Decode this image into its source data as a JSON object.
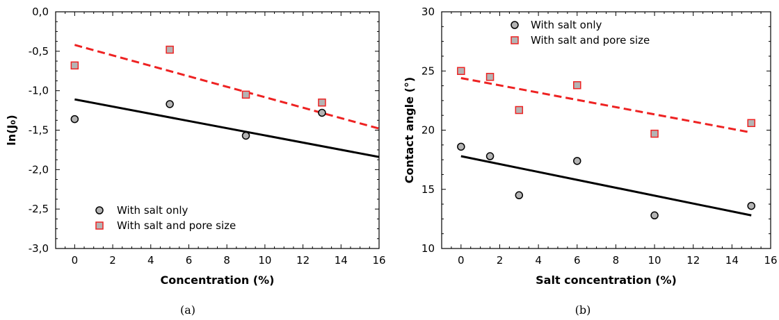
{
  "chart_data": [
    {
      "panel": "(a)",
      "type": "scatter",
      "title": "",
      "xlabel": "Concentration (%)",
      "ylabel": "ln(J₀)",
      "xlim": [
        -1,
        16
      ],
      "ylim": [
        -3.0,
        0.0
      ],
      "xticks": [
        0,
        2,
        4,
        6,
        8,
        10,
        12,
        14,
        16
      ],
      "xtick_labels": [
        "0",
        "2",
        "4",
        "6",
        "8",
        "10",
        "12",
        "14",
        "16"
      ],
      "yticks": [
        0.0,
        -0.5,
        -1.0,
        -1.5,
        -2.0,
        -2.5,
        -3.0
      ],
      "ytick_labels": [
        "0,0",
        "-0,5",
        "-1,0",
        "-1,5",
        "-2,0",
        "-2,5",
        "-3,0"
      ],
      "grid": false,
      "legend_position": "bottom-left",
      "series": [
        {
          "name": "With salt only",
          "marker": "circle",
          "color": "#000000",
          "fill": "#b4b4b4",
          "points": [
            [
              0,
              -1.36
            ],
            [
              5,
              -1.17
            ],
            [
              9,
              -1.57
            ],
            [
              13,
              -1.28
            ]
          ],
          "fit": {
            "style": "solid",
            "color": "#000000",
            "x": [
              0,
              16
            ],
            "y": [
              -1.11,
              -1.84
            ]
          }
        },
        {
          "name": "With salt and pore size",
          "marker": "square",
          "color": "#ee2222",
          "fill": "#b4b4b4",
          "points": [
            [
              0,
              -0.68
            ],
            [
              5,
              -0.48
            ],
            [
              9,
              -1.05
            ],
            [
              13,
              -1.15
            ]
          ],
          "fit": {
            "style": "dashed",
            "color": "#ee2222",
            "x": [
              0,
              16
            ],
            "y": [
              -0.42,
              -1.48
            ]
          }
        }
      ]
    },
    {
      "panel": "(b)",
      "type": "scatter",
      "title": "",
      "xlabel": "Salt concentration (%)",
      "ylabel": "Contact angle (°)",
      "xlim": [
        -1,
        16
      ],
      "ylim": [
        10,
        30
      ],
      "xticks": [
        0,
        2,
        4,
        6,
        8,
        10,
        12,
        14,
        16
      ],
      "xtick_labels": [
        "0",
        "2",
        "4",
        "6",
        "8",
        "10",
        "12",
        "14",
        "16"
      ],
      "yticks": [
        10,
        15,
        20,
        25,
        30
      ],
      "ytick_labels": [
        "10",
        "15",
        "20",
        "25",
        "30"
      ],
      "grid": false,
      "legend_position": "top-center",
      "series": [
        {
          "name": "With salt only",
          "marker": "circle",
          "color": "#000000",
          "fill": "#b4b4b4",
          "points": [
            [
              0,
              18.6
            ],
            [
              1.5,
              17.8
            ],
            [
              3,
              14.5
            ],
            [
              6,
              17.4
            ],
            [
              10,
              12.8
            ],
            [
              15,
              13.6
            ]
          ],
          "fit": {
            "style": "solid",
            "color": "#000000",
            "x": [
              0,
              15
            ],
            "y": [
              17.8,
              12.8
            ]
          }
        },
        {
          "name": "With salt and pore size",
          "marker": "square",
          "color": "#ee2222",
          "fill": "#b4b4b4",
          "points": [
            [
              0,
              25.0
            ],
            [
              1.5,
              24.5
            ],
            [
              3,
              21.7
            ],
            [
              6,
              23.8
            ],
            [
              10,
              19.7
            ],
            [
              15,
              20.6
            ]
          ],
          "fit": {
            "style": "dashed",
            "color": "#ee2222",
            "x": [
              0,
              15
            ],
            "y": [
              24.4,
              19.8
            ]
          }
        }
      ]
    }
  ]
}
